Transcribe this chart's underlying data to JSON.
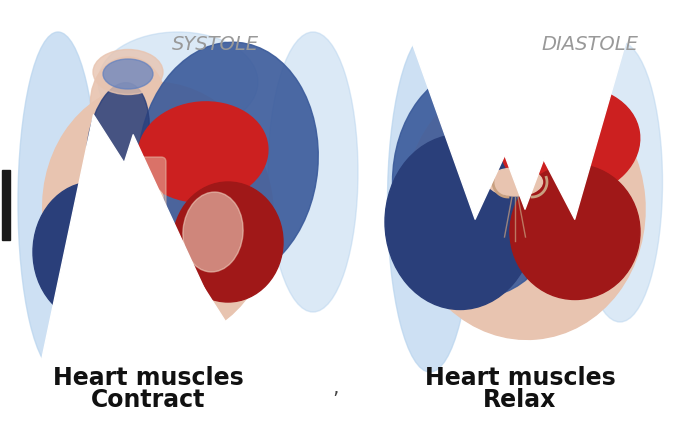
{
  "background_color": "#ffffff",
  "left_label": "SYSTOLE",
  "right_label": "DIASTOLE",
  "left_caption_line1": "Heart muscles",
  "left_caption_line2": "Contract",
  "right_caption_line1": "Heart muscles",
  "right_caption_line2": "Relax",
  "left_label_color": "#999999",
  "right_label_color": "#999999",
  "label_fontsize": 14,
  "caption_fontsize": 17,
  "caption_color": "#111111",
  "fig_width": 6.81,
  "fig_height": 4.33,
  "dpi": 100,
  "comma_char": "’",
  "comma_color": "#444444",
  "comma_fontsize": 14
}
